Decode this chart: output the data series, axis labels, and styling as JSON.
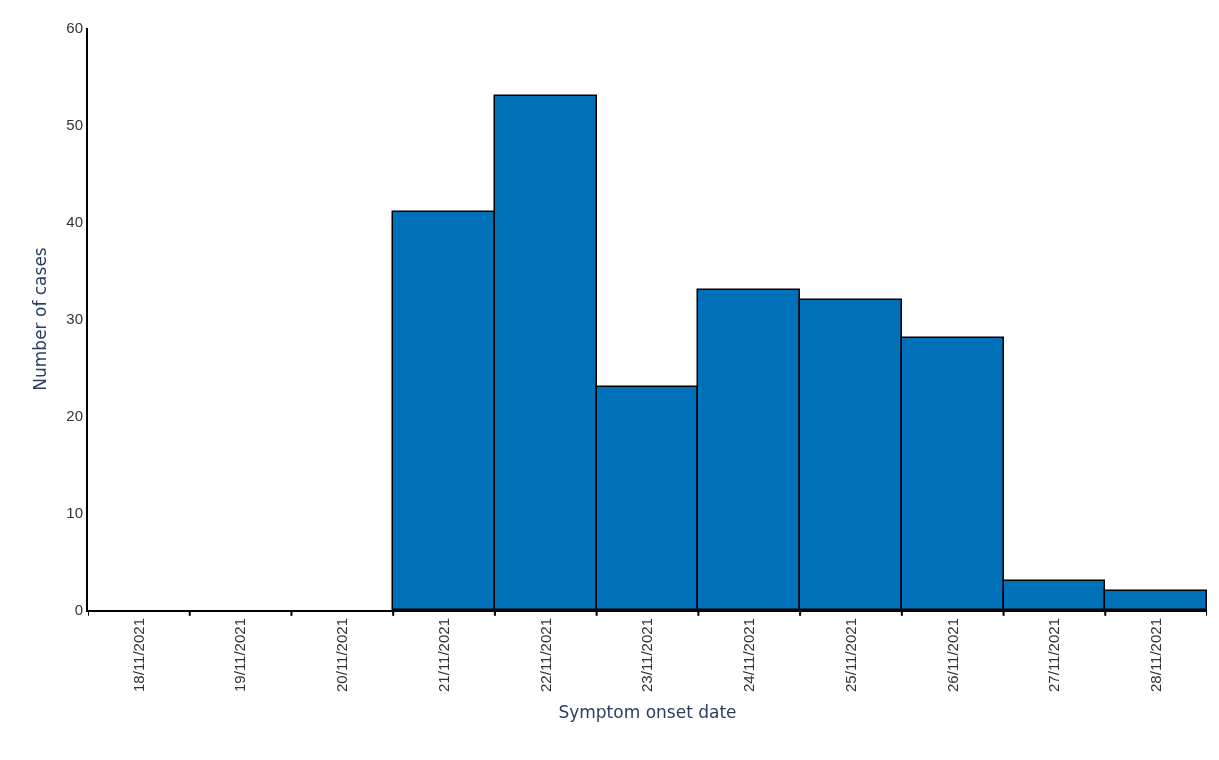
{
  "chart_data": {
    "type": "bar",
    "xlabel": "Symptom onset date",
    "ylabel": "Number of cases",
    "categories": [
      "18/11/2021",
      "19/11/2021",
      "20/11/2021",
      "21/11/2021",
      "22/11/2021",
      "23/11/2021",
      "24/11/2021",
      "25/11/2021",
      "26/11/2021",
      "27/11/2021",
      "28/11/2021"
    ],
    "values": [
      0,
      0,
      0,
      41,
      53,
      23,
      33,
      32,
      28,
      3,
      2
    ],
    "color": "#0070b8",
    "ylim": [
      0,
      60
    ],
    "yticks": [
      0,
      10,
      20,
      30,
      40,
      50,
      60
    ]
  }
}
